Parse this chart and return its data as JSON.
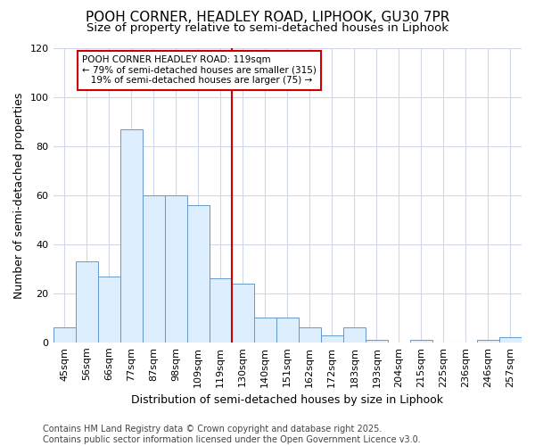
{
  "title1": "POOH CORNER, HEADLEY ROAD, LIPHOOK, GU30 7PR",
  "title2": "Size of property relative to semi-detached houses in Liphook",
  "xlabel": "Distribution of semi-detached houses by size in Liphook",
  "ylabel": "Number of semi-detached properties",
  "categories": [
    "45sqm",
    "56sqm",
    "66sqm",
    "77sqm",
    "87sqm",
    "98sqm",
    "109sqm",
    "119sqm",
    "130sqm",
    "140sqm",
    "151sqm",
    "162sqm",
    "172sqm",
    "183sqm",
    "193sqm",
    "204sqm",
    "215sqm",
    "225sqm",
    "236sqm",
    "246sqm",
    "257sqm"
  ],
  "values": [
    6,
    33,
    27,
    87,
    60,
    60,
    56,
    26,
    24,
    10,
    10,
    6,
    3,
    6,
    1,
    0,
    1,
    0,
    0,
    1,
    2
  ],
  "bar_color": "#ddeeff",
  "bar_edge_color": "#6699cc",
  "reference_line_color": "#cc0000",
  "annotation_line1": "POOH CORNER HEADLEY ROAD: 119sqm",
  "annotation_line2": "← 79% of semi-detached houses are smaller (315)",
  "annotation_line3": "   19% of semi-detached houses are larger (75) →",
  "annotation_box_color": "#cc0000",
  "ylim": [
    0,
    120
  ],
  "yticks": [
    0,
    20,
    40,
    60,
    80,
    100,
    120
  ],
  "background_color": "#ffffff",
  "plot_bg_color": "#ffffff",
  "footer_text": "Contains HM Land Registry data © Crown copyright and database right 2025.\nContains public sector information licensed under the Open Government Licence v3.0.",
  "grid_color": "#d0d8e8",
  "title_fontsize": 11,
  "subtitle_fontsize": 9.5,
  "axis_label_fontsize": 9,
  "tick_fontsize": 8,
  "footer_fontsize": 7
}
